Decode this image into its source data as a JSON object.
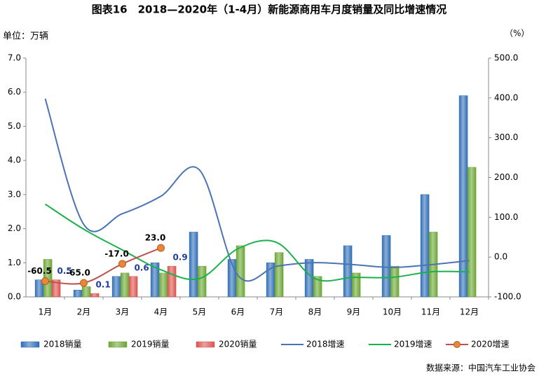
{
  "chart_data": {
    "type": "combo",
    "title": "图表16　2018—2020年（1-4月）新能源商用车月度销量及同比增速情况",
    "y_label": "单位：万辆",
    "y2_label": "（%）",
    "source": "数据来源：中国汽车工业协会",
    "categories": [
      "1月",
      "2月",
      "3月",
      "4月",
      "5月",
      "6月",
      "7月",
      "8月",
      "9月",
      "10月",
      "11月",
      "12月"
    ],
    "ylim": [
      0,
      7
    ],
    "yticks": [
      {
        "value": 0,
        "label": "0.0"
      },
      {
        "value": 1,
        "label": "1.0"
      },
      {
        "value": 2,
        "label": "2.0"
      },
      {
        "value": 3,
        "label": "3.0"
      },
      {
        "value": 4,
        "label": "4.0"
      },
      {
        "value": 5,
        "label": "5.0"
      },
      {
        "value": 6,
        "label": "6.0"
      },
      {
        "value": 7,
        "label": "7.0"
      }
    ],
    "y2lim": [
      -100,
      500
    ],
    "y2ticks": [
      {
        "value": -100,
        "label": "-100.0"
      },
      {
        "value": 0,
        "label": "0.0"
      },
      {
        "value": 100,
        "label": "100.0"
      },
      {
        "value": 200,
        "label": "200.0"
      },
      {
        "value": 300,
        "label": "300.0"
      },
      {
        "value": 400,
        "label": "400.0"
      },
      {
        "value": 500,
        "label": "500.0"
      }
    ],
    "grid": false,
    "legend": "bottom",
    "series": [
      {
        "name": "2018销量",
        "type": "bar",
        "color": "#2e6db5",
        "values": [
          0.5,
          0.2,
          0.6,
          1.0,
          1.9,
          1.1,
          1.0,
          1.1,
          1.5,
          1.8,
          3.0,
          5.9
        ]
      },
      {
        "name": "2019销量",
        "type": "bar",
        "color": "#6aa533",
        "values": [
          1.1,
          0.3,
          0.7,
          0.7,
          0.9,
          1.5,
          1.3,
          0.6,
          0.7,
          0.9,
          1.9,
          3.8
        ]
      },
      {
        "name": "2020销量",
        "type": "bar",
        "color": "#d9534f",
        "data_labels": true,
        "values": [
          0.5,
          0.1,
          0.6,
          0.9,
          null,
          null,
          null,
          null,
          null,
          null,
          null,
          null
        ]
      },
      {
        "name": "2018增速",
        "type": "line",
        "axis": "y2",
        "color": "#4a74b5",
        "values": [
          398,
          82,
          109,
          153,
          219,
          -46,
          -23,
          -14,
          -19,
          -26,
          -19,
          -9
        ]
      },
      {
        "name": "2019增速",
        "type": "line",
        "axis": "y2",
        "color": "#1bb14a",
        "values": [
          133,
          70,
          18,
          -32,
          -54,
          21,
          37,
          -54,
          -51,
          -51,
          -37,
          -37
        ]
      },
      {
        "name": "2020增速",
        "type": "line",
        "axis": "y2",
        "color": "#c0504d",
        "marker": true,
        "data_labels": true,
        "values": [
          -60.5,
          -65,
          -17,
          23,
          null,
          null,
          null,
          null,
          null,
          null,
          null,
          null
        ],
        "value_labels": [
          "-60.5",
          "-65.0",
          "-17.0",
          "23.0",
          null,
          null,
          null,
          null,
          null,
          null,
          null,
          null
        ]
      }
    ]
  }
}
